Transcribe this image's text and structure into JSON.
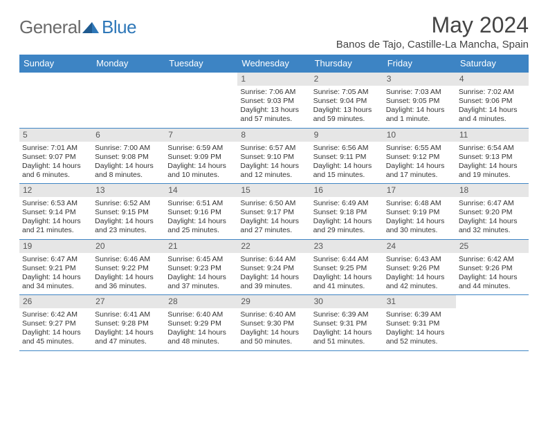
{
  "logo": {
    "part1": "General",
    "part2": "Blue"
  },
  "title": "May 2024",
  "location": "Banos de Tajo, Castille-La Mancha, Spain",
  "theme": {
    "header_bg": "#3d84c4",
    "header_fg": "#ffffff",
    "daynum_bg": "#e6e6e6",
    "border": "#3d84c4",
    "text": "#333333"
  },
  "day_names": [
    "Sunday",
    "Monday",
    "Tuesday",
    "Wednesday",
    "Thursday",
    "Friday",
    "Saturday"
  ],
  "weeks": [
    [
      {
        "n": "",
        "empty": true
      },
      {
        "n": "",
        "empty": true
      },
      {
        "n": "",
        "empty": true
      },
      {
        "n": "1",
        "sr": "Sunrise: 7:06 AM",
        "ss": "Sunset: 9:03 PM",
        "d1": "Daylight: 13 hours",
        "d2": "and 57 minutes."
      },
      {
        "n": "2",
        "sr": "Sunrise: 7:05 AM",
        "ss": "Sunset: 9:04 PM",
        "d1": "Daylight: 13 hours",
        "d2": "and 59 minutes."
      },
      {
        "n": "3",
        "sr": "Sunrise: 7:03 AM",
        "ss": "Sunset: 9:05 PM",
        "d1": "Daylight: 14 hours",
        "d2": "and 1 minute."
      },
      {
        "n": "4",
        "sr": "Sunrise: 7:02 AM",
        "ss": "Sunset: 9:06 PM",
        "d1": "Daylight: 14 hours",
        "d2": "and 4 minutes."
      }
    ],
    [
      {
        "n": "5",
        "sr": "Sunrise: 7:01 AM",
        "ss": "Sunset: 9:07 PM",
        "d1": "Daylight: 14 hours",
        "d2": "and 6 minutes."
      },
      {
        "n": "6",
        "sr": "Sunrise: 7:00 AM",
        "ss": "Sunset: 9:08 PM",
        "d1": "Daylight: 14 hours",
        "d2": "and 8 minutes."
      },
      {
        "n": "7",
        "sr": "Sunrise: 6:59 AM",
        "ss": "Sunset: 9:09 PM",
        "d1": "Daylight: 14 hours",
        "d2": "and 10 minutes."
      },
      {
        "n": "8",
        "sr": "Sunrise: 6:57 AM",
        "ss": "Sunset: 9:10 PM",
        "d1": "Daylight: 14 hours",
        "d2": "and 12 minutes."
      },
      {
        "n": "9",
        "sr": "Sunrise: 6:56 AM",
        "ss": "Sunset: 9:11 PM",
        "d1": "Daylight: 14 hours",
        "d2": "and 15 minutes."
      },
      {
        "n": "10",
        "sr": "Sunrise: 6:55 AM",
        "ss": "Sunset: 9:12 PM",
        "d1": "Daylight: 14 hours",
        "d2": "and 17 minutes."
      },
      {
        "n": "11",
        "sr": "Sunrise: 6:54 AM",
        "ss": "Sunset: 9:13 PM",
        "d1": "Daylight: 14 hours",
        "d2": "and 19 minutes."
      }
    ],
    [
      {
        "n": "12",
        "sr": "Sunrise: 6:53 AM",
        "ss": "Sunset: 9:14 PM",
        "d1": "Daylight: 14 hours",
        "d2": "and 21 minutes."
      },
      {
        "n": "13",
        "sr": "Sunrise: 6:52 AM",
        "ss": "Sunset: 9:15 PM",
        "d1": "Daylight: 14 hours",
        "d2": "and 23 minutes."
      },
      {
        "n": "14",
        "sr": "Sunrise: 6:51 AM",
        "ss": "Sunset: 9:16 PM",
        "d1": "Daylight: 14 hours",
        "d2": "and 25 minutes."
      },
      {
        "n": "15",
        "sr": "Sunrise: 6:50 AM",
        "ss": "Sunset: 9:17 PM",
        "d1": "Daylight: 14 hours",
        "d2": "and 27 minutes."
      },
      {
        "n": "16",
        "sr": "Sunrise: 6:49 AM",
        "ss": "Sunset: 9:18 PM",
        "d1": "Daylight: 14 hours",
        "d2": "and 29 minutes."
      },
      {
        "n": "17",
        "sr": "Sunrise: 6:48 AM",
        "ss": "Sunset: 9:19 PM",
        "d1": "Daylight: 14 hours",
        "d2": "and 30 minutes."
      },
      {
        "n": "18",
        "sr": "Sunrise: 6:47 AM",
        "ss": "Sunset: 9:20 PM",
        "d1": "Daylight: 14 hours",
        "d2": "and 32 minutes."
      }
    ],
    [
      {
        "n": "19",
        "sr": "Sunrise: 6:47 AM",
        "ss": "Sunset: 9:21 PM",
        "d1": "Daylight: 14 hours",
        "d2": "and 34 minutes."
      },
      {
        "n": "20",
        "sr": "Sunrise: 6:46 AM",
        "ss": "Sunset: 9:22 PM",
        "d1": "Daylight: 14 hours",
        "d2": "and 36 minutes."
      },
      {
        "n": "21",
        "sr": "Sunrise: 6:45 AM",
        "ss": "Sunset: 9:23 PM",
        "d1": "Daylight: 14 hours",
        "d2": "and 37 minutes."
      },
      {
        "n": "22",
        "sr": "Sunrise: 6:44 AM",
        "ss": "Sunset: 9:24 PM",
        "d1": "Daylight: 14 hours",
        "d2": "and 39 minutes."
      },
      {
        "n": "23",
        "sr": "Sunrise: 6:44 AM",
        "ss": "Sunset: 9:25 PM",
        "d1": "Daylight: 14 hours",
        "d2": "and 41 minutes."
      },
      {
        "n": "24",
        "sr": "Sunrise: 6:43 AM",
        "ss": "Sunset: 9:26 PM",
        "d1": "Daylight: 14 hours",
        "d2": "and 42 minutes."
      },
      {
        "n": "25",
        "sr": "Sunrise: 6:42 AM",
        "ss": "Sunset: 9:26 PM",
        "d1": "Daylight: 14 hours",
        "d2": "and 44 minutes."
      }
    ],
    [
      {
        "n": "26",
        "sr": "Sunrise: 6:42 AM",
        "ss": "Sunset: 9:27 PM",
        "d1": "Daylight: 14 hours",
        "d2": "and 45 minutes."
      },
      {
        "n": "27",
        "sr": "Sunrise: 6:41 AM",
        "ss": "Sunset: 9:28 PM",
        "d1": "Daylight: 14 hours",
        "d2": "and 47 minutes."
      },
      {
        "n": "28",
        "sr": "Sunrise: 6:40 AM",
        "ss": "Sunset: 9:29 PM",
        "d1": "Daylight: 14 hours",
        "d2": "and 48 minutes."
      },
      {
        "n": "29",
        "sr": "Sunrise: 6:40 AM",
        "ss": "Sunset: 9:30 PM",
        "d1": "Daylight: 14 hours",
        "d2": "and 50 minutes."
      },
      {
        "n": "30",
        "sr": "Sunrise: 6:39 AM",
        "ss": "Sunset: 9:31 PM",
        "d1": "Daylight: 14 hours",
        "d2": "and 51 minutes."
      },
      {
        "n": "31",
        "sr": "Sunrise: 6:39 AM",
        "ss": "Sunset: 9:31 PM",
        "d1": "Daylight: 14 hours",
        "d2": "and 52 minutes."
      },
      {
        "n": "",
        "empty": true
      }
    ]
  ]
}
